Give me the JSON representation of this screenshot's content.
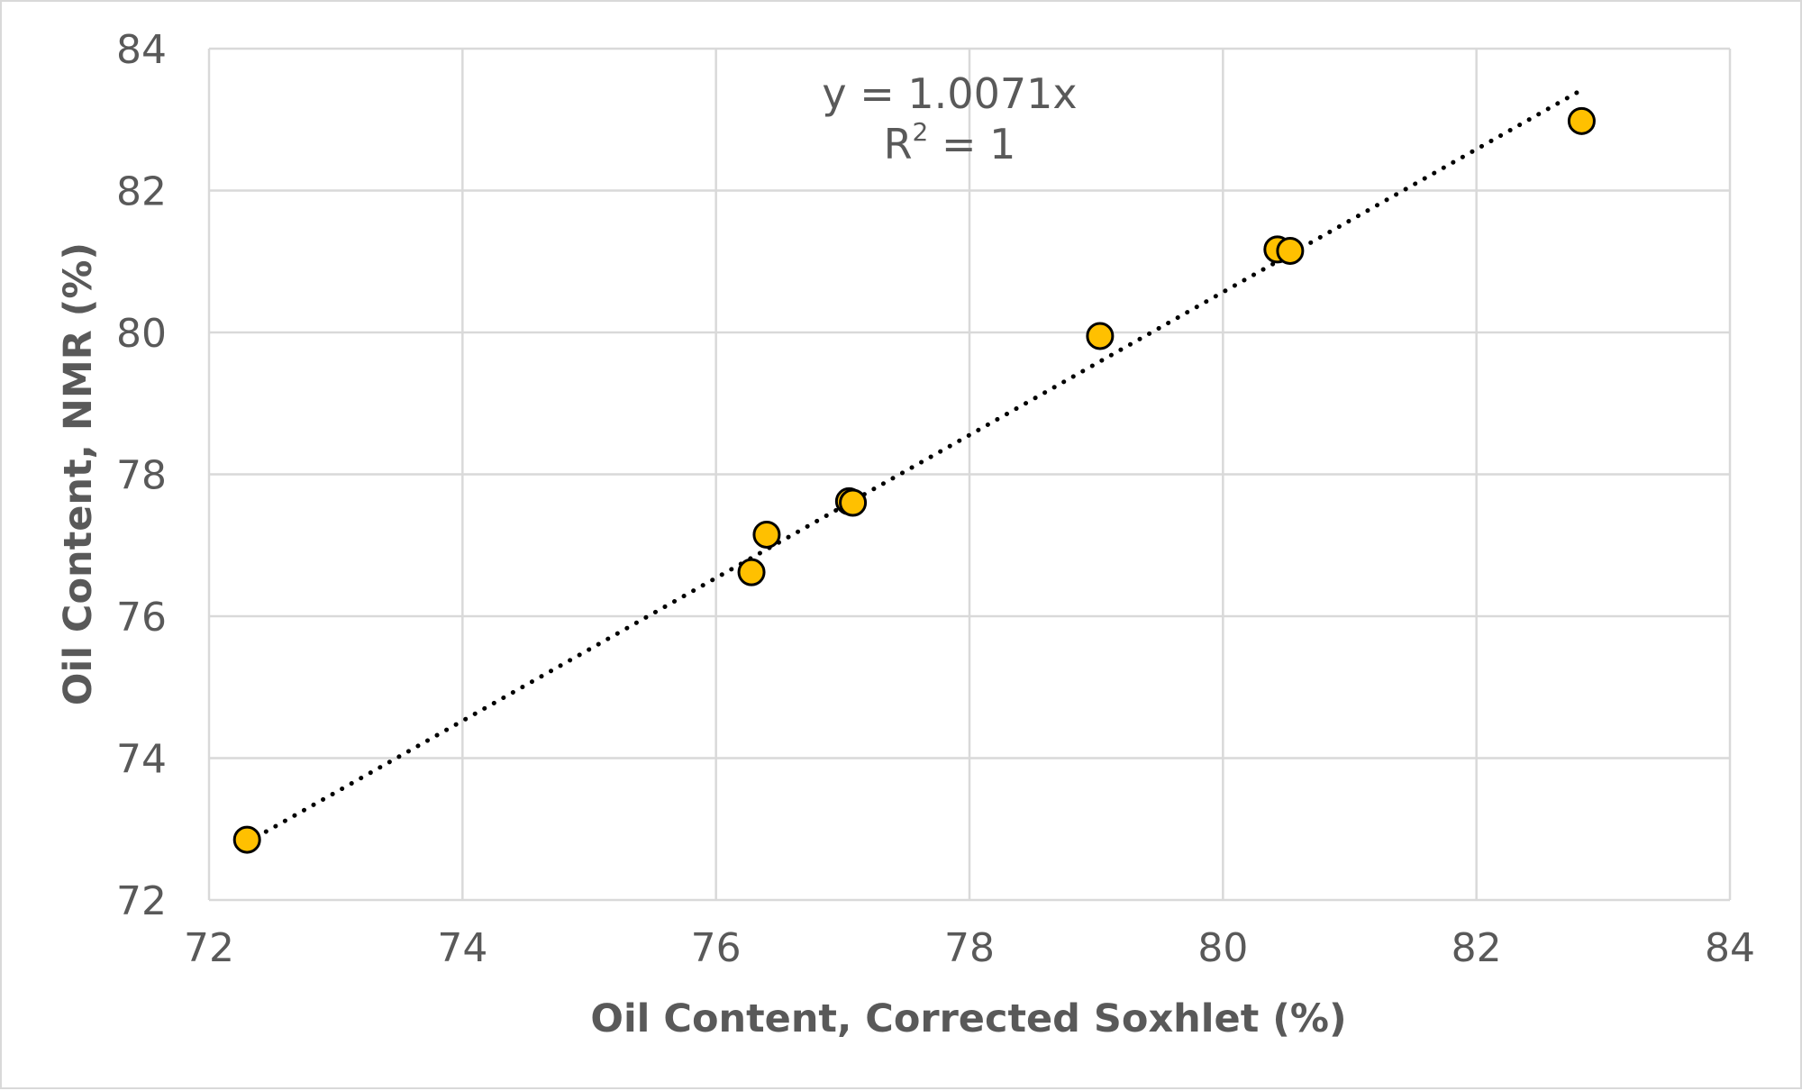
{
  "chart_data": {
    "type": "scatter",
    "title": "",
    "xlabel": "Oil Content, Corrected Soxhlet (%)",
    "ylabel": "Oil Content, NMR (%)",
    "xlim": [
      72,
      84
    ],
    "ylim": [
      72,
      84
    ],
    "x_ticks": [
      72,
      74,
      76,
      78,
      80,
      82,
      84
    ],
    "y_ticks": [
      72,
      74,
      76,
      78,
      80,
      82,
      84
    ],
    "grid": true,
    "legend": "none",
    "marker_color": "#FFC000",
    "marker_edge_color": "#000000",
    "trendline_color": "#000000",
    "gridline_color": "#D9D9D9",
    "series": [
      {
        "points": [
          {
            "x": 72.3,
            "y": 72.85
          },
          {
            "x": 76.28,
            "y": 76.62
          },
          {
            "x": 76.4,
            "y": 77.15
          },
          {
            "x": 77.05,
            "y": 77.62
          },
          {
            "x": 77.08,
            "y": 77.6
          },
          {
            "x": 79.03,
            "y": 79.95
          },
          {
            "x": 80.43,
            "y": 81.17
          },
          {
            "x": 80.53,
            "y": 81.15
          },
          {
            "x": 82.83,
            "y": 82.98
          }
        ]
      }
    ],
    "trendline": {
      "type": "linear-through-origin",
      "slope": 1.0071,
      "x_range": [
        72.3,
        82.8
      ],
      "equation_label": "y = 1.0071x",
      "r2_label_prefix": "R",
      "r2_label_superscript": "2",
      "r2_label_suffix": " = 1"
    }
  }
}
